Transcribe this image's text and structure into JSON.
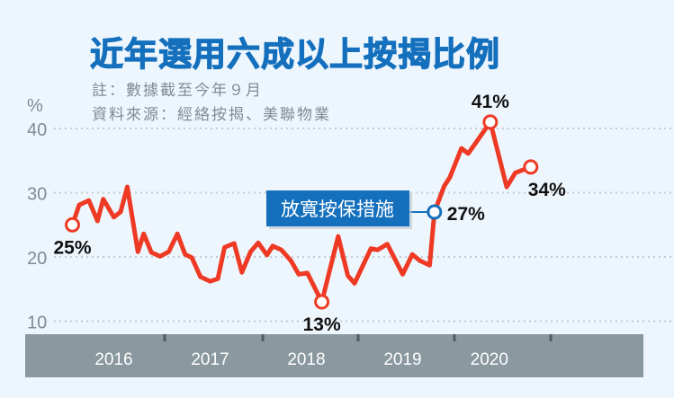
{
  "chart_data": {
    "type": "line",
    "title": "近年選用六成以上按揭比例",
    "notes": [
      "註：數據截至今年９月",
      "資料來源：經絡按揭、美聯物業"
    ],
    "ylabel": "%",
    "ylim": [
      8,
      43
    ],
    "yticks": [
      10,
      20,
      30,
      40
    ],
    "xlim": [
      2015.95,
      2021.55
    ],
    "xticks": [
      {
        "label": "2016",
        "at": 2016.5
      },
      {
        "label": "2017",
        "at": 2017.5
      },
      {
        "label": "2018",
        "at": 2018.5
      },
      {
        "label": "2019",
        "at": 2019.5
      },
      {
        "label": "2020",
        "at": 2020.4
      }
    ],
    "grid": true,
    "line_color": "#ee3a24",
    "accent": "#1470bd",
    "points": [
      [
        2016.07,
        25
      ],
      [
        2016.14,
        28.1
      ],
      [
        2016.24,
        28.8
      ],
      [
        2016.33,
        25.6
      ],
      [
        2016.39,
        29.0
      ],
      [
        2016.5,
        26.2
      ],
      [
        2016.57,
        27.0
      ],
      [
        2016.64,
        30.9
      ],
      [
        2016.75,
        20.8
      ],
      [
        2016.81,
        23.6
      ],
      [
        2016.89,
        20.7
      ],
      [
        2016.98,
        20.1
      ],
      [
        2017.07,
        20.8
      ],
      [
        2017.16,
        23.6
      ],
      [
        2017.24,
        20.4
      ],
      [
        2017.31,
        19.9
      ],
      [
        2017.4,
        16.9
      ],
      [
        2017.5,
        16.2
      ],
      [
        2017.58,
        16.6
      ],
      [
        2017.65,
        21.5
      ],
      [
        2017.75,
        22.1
      ],
      [
        2017.83,
        17.6
      ],
      [
        2017.92,
        20.8
      ],
      [
        2018.0,
        22.2
      ],
      [
        2018.09,
        20.3
      ],
      [
        2018.15,
        21.7
      ],
      [
        2018.24,
        21.1
      ],
      [
        2018.34,
        19.4
      ],
      [
        2018.42,
        17.3
      ],
      [
        2018.51,
        17.5
      ],
      [
        2018.66,
        13
      ],
      [
        2018.83,
        23.2
      ],
      [
        2018.93,
        17.1
      ],
      [
        2019.0,
        15.9
      ],
      [
        2019.17,
        21.3
      ],
      [
        2019.24,
        21.1
      ],
      [
        2019.34,
        22.0
      ],
      [
        2019.5,
        17.3
      ],
      [
        2019.6,
        20.4
      ],
      [
        2019.68,
        19.4
      ],
      [
        2019.78,
        18.7
      ],
      [
        2019.83,
        27
      ],
      [
        2019.93,
        31.0
      ],
      [
        2019.99,
        32.4
      ],
      [
        2020.11,
        36.9
      ],
      [
        2020.18,
        36.1
      ],
      [
        2020.27,
        38.0
      ],
      [
        2020.41,
        41
      ],
      [
        2020.58,
        30.9
      ],
      [
        2020.67,
        33.1
      ],
      [
        2020.83,
        34
      ]
    ],
    "annotations": [
      {
        "index": 0,
        "label": "25%",
        "pos": "below",
        "color": "#ee3a24"
      },
      {
        "index": 30,
        "label": "13%",
        "pos": "below",
        "color": "#ee3a24"
      },
      {
        "index": 41,
        "label": "27%",
        "pos": "right",
        "color": "#1470bd"
      },
      {
        "index": 47,
        "label": "41%",
        "pos": "above",
        "color": "#ee3a24"
      },
      {
        "index": 50,
        "label": "34%",
        "pos": "below-right",
        "color": "#ee3a24"
      }
    ],
    "callout": {
      "text": "放寬按保措施",
      "index": 41
    }
  }
}
